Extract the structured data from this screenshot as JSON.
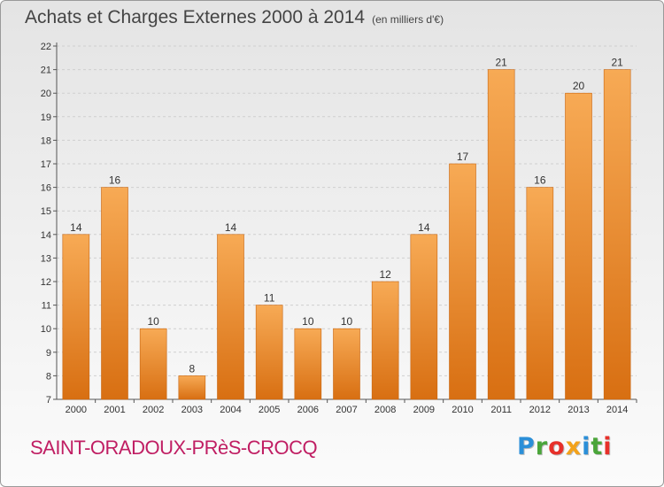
{
  "title": "Achats et Charges Externes 2000 à 2014",
  "unit_note": "(en milliers d'€)",
  "city": "SAINT-ORADOUX-PRèS-CROCQ",
  "logo": {
    "letters": [
      "P",
      "r",
      "o",
      "x",
      "i",
      "t",
      "i"
    ],
    "colors": [
      "#2b8fd8",
      "#4aa53a",
      "#e7302a",
      "#f3a21b",
      "#2b8fd8",
      "#4aa53a",
      "#e7302a"
    ]
  },
  "colors": {
    "bar": "#f0922e",
    "bar_light": "#f7aa55",
    "bar_dark": "#d86f12",
    "grid": "#cfcfcf",
    "axis": "#555555"
  },
  "chart_data": {
    "type": "bar",
    "categories": [
      "2000",
      "2001",
      "2002",
      "2003",
      "2004",
      "2005",
      "2006",
      "2007",
      "2008",
      "2009",
      "2010",
      "2011",
      "2012",
      "2013",
      "2014"
    ],
    "values": [
      14,
      16,
      10,
      8,
      14,
      11,
      10,
      10,
      12,
      14,
      17,
      21,
      16,
      20,
      21
    ],
    "ylim": [
      7,
      22
    ],
    "yticks": [
      7,
      8,
      9,
      10,
      11,
      12,
      13,
      14,
      15,
      16,
      17,
      18,
      19,
      20,
      21,
      22
    ],
    "grid": true
  }
}
